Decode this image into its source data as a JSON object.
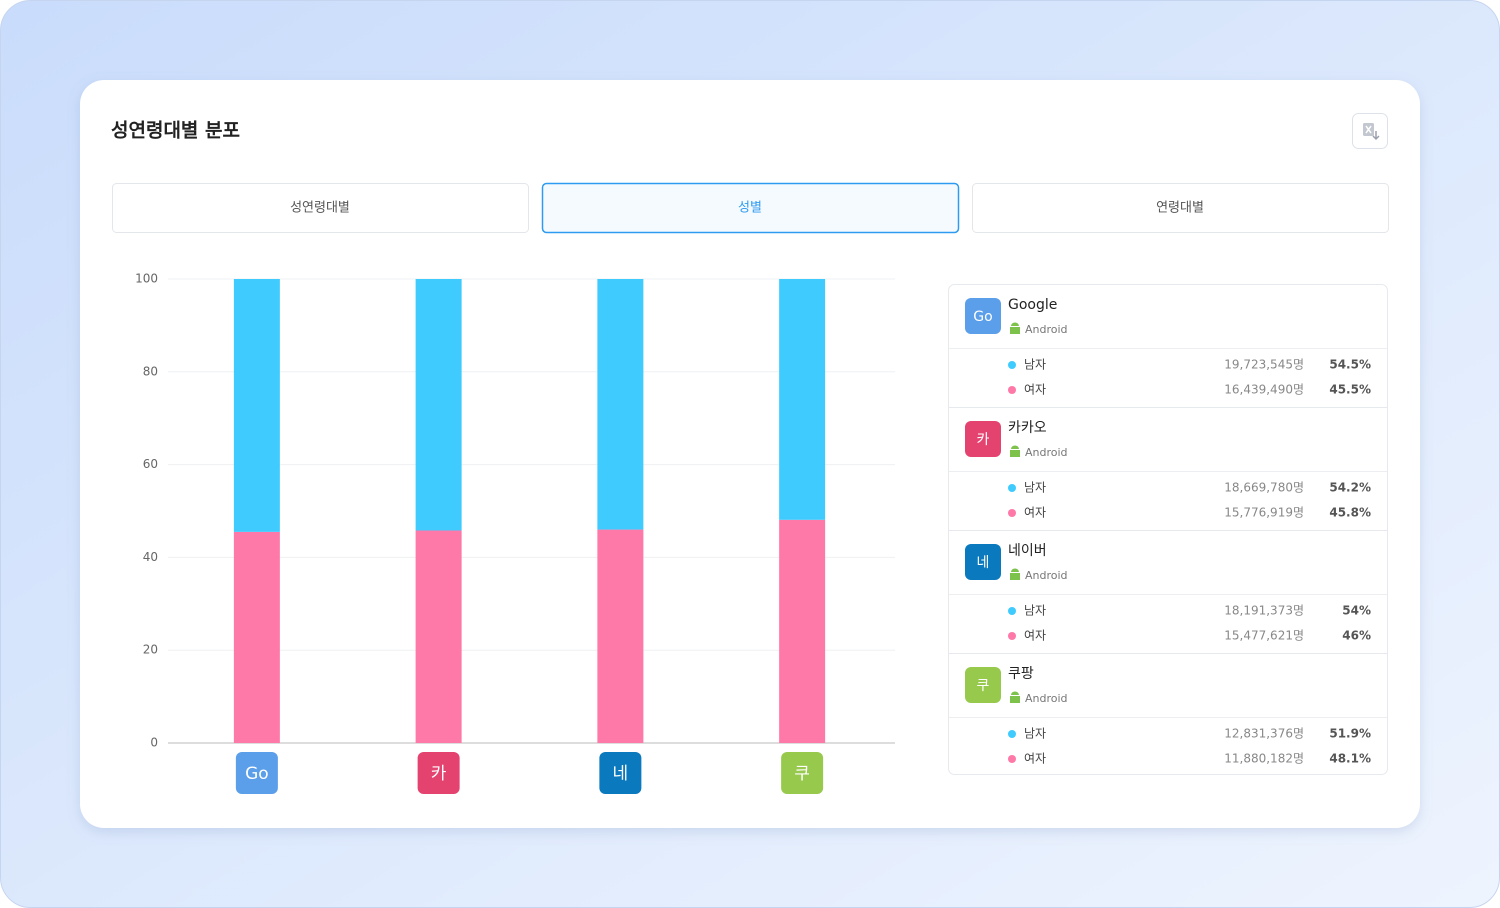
{
  "header": {
    "title": "성연령대별 분포"
  },
  "tabs": [
    "성연령대별",
    "성별",
    "연령대별"
  ],
  "active_tab": 1,
  "chart_data": {
    "type": "stacked_bar",
    "categories": [
      "Go",
      "카",
      "네",
      "쿠"
    ],
    "category_colors": [
      "#5b9ee9",
      "#e5436f",
      "#0b79bd",
      "#97c94c"
    ],
    "series": [
      {
        "name": "여자",
        "color": "#ff79a8",
        "values": [
          45.5,
          45.8,
          46,
          48.1
        ],
        "value_labels": [
          "45.5%",
          "45.8%",
          "46%",
          "48.1%"
        ],
        "counts": [
          "16,439,490명",
          "15,776,919명",
          "15,477,621명",
          "11,880,182명"
        ]
      },
      {
        "name": "남자",
        "color": "#40cbff",
        "values": [
          54.5,
          54.2,
          54,
          51.9
        ],
        "value_labels": [
          "54.5%",
          "54.2%",
          "54%",
          "51.9%"
        ],
        "counts": [
          "19,723,545명",
          "18,669,780명",
          "18,191,373명",
          "12,831,376명"
        ]
      }
    ],
    "ylim": [
      0,
      100
    ],
    "yticks": [
      0,
      20,
      40,
      60,
      80,
      100
    ],
    "grid": true
  },
  "apps": [
    {
      "name": "Google",
      "platform": "Android"
    },
    {
      "name": "카카오",
      "platform": "Android"
    },
    {
      "name": "네이버",
      "platform": "Android"
    },
    {
      "name": "쿠팡",
      "platform": "Android"
    }
  ]
}
